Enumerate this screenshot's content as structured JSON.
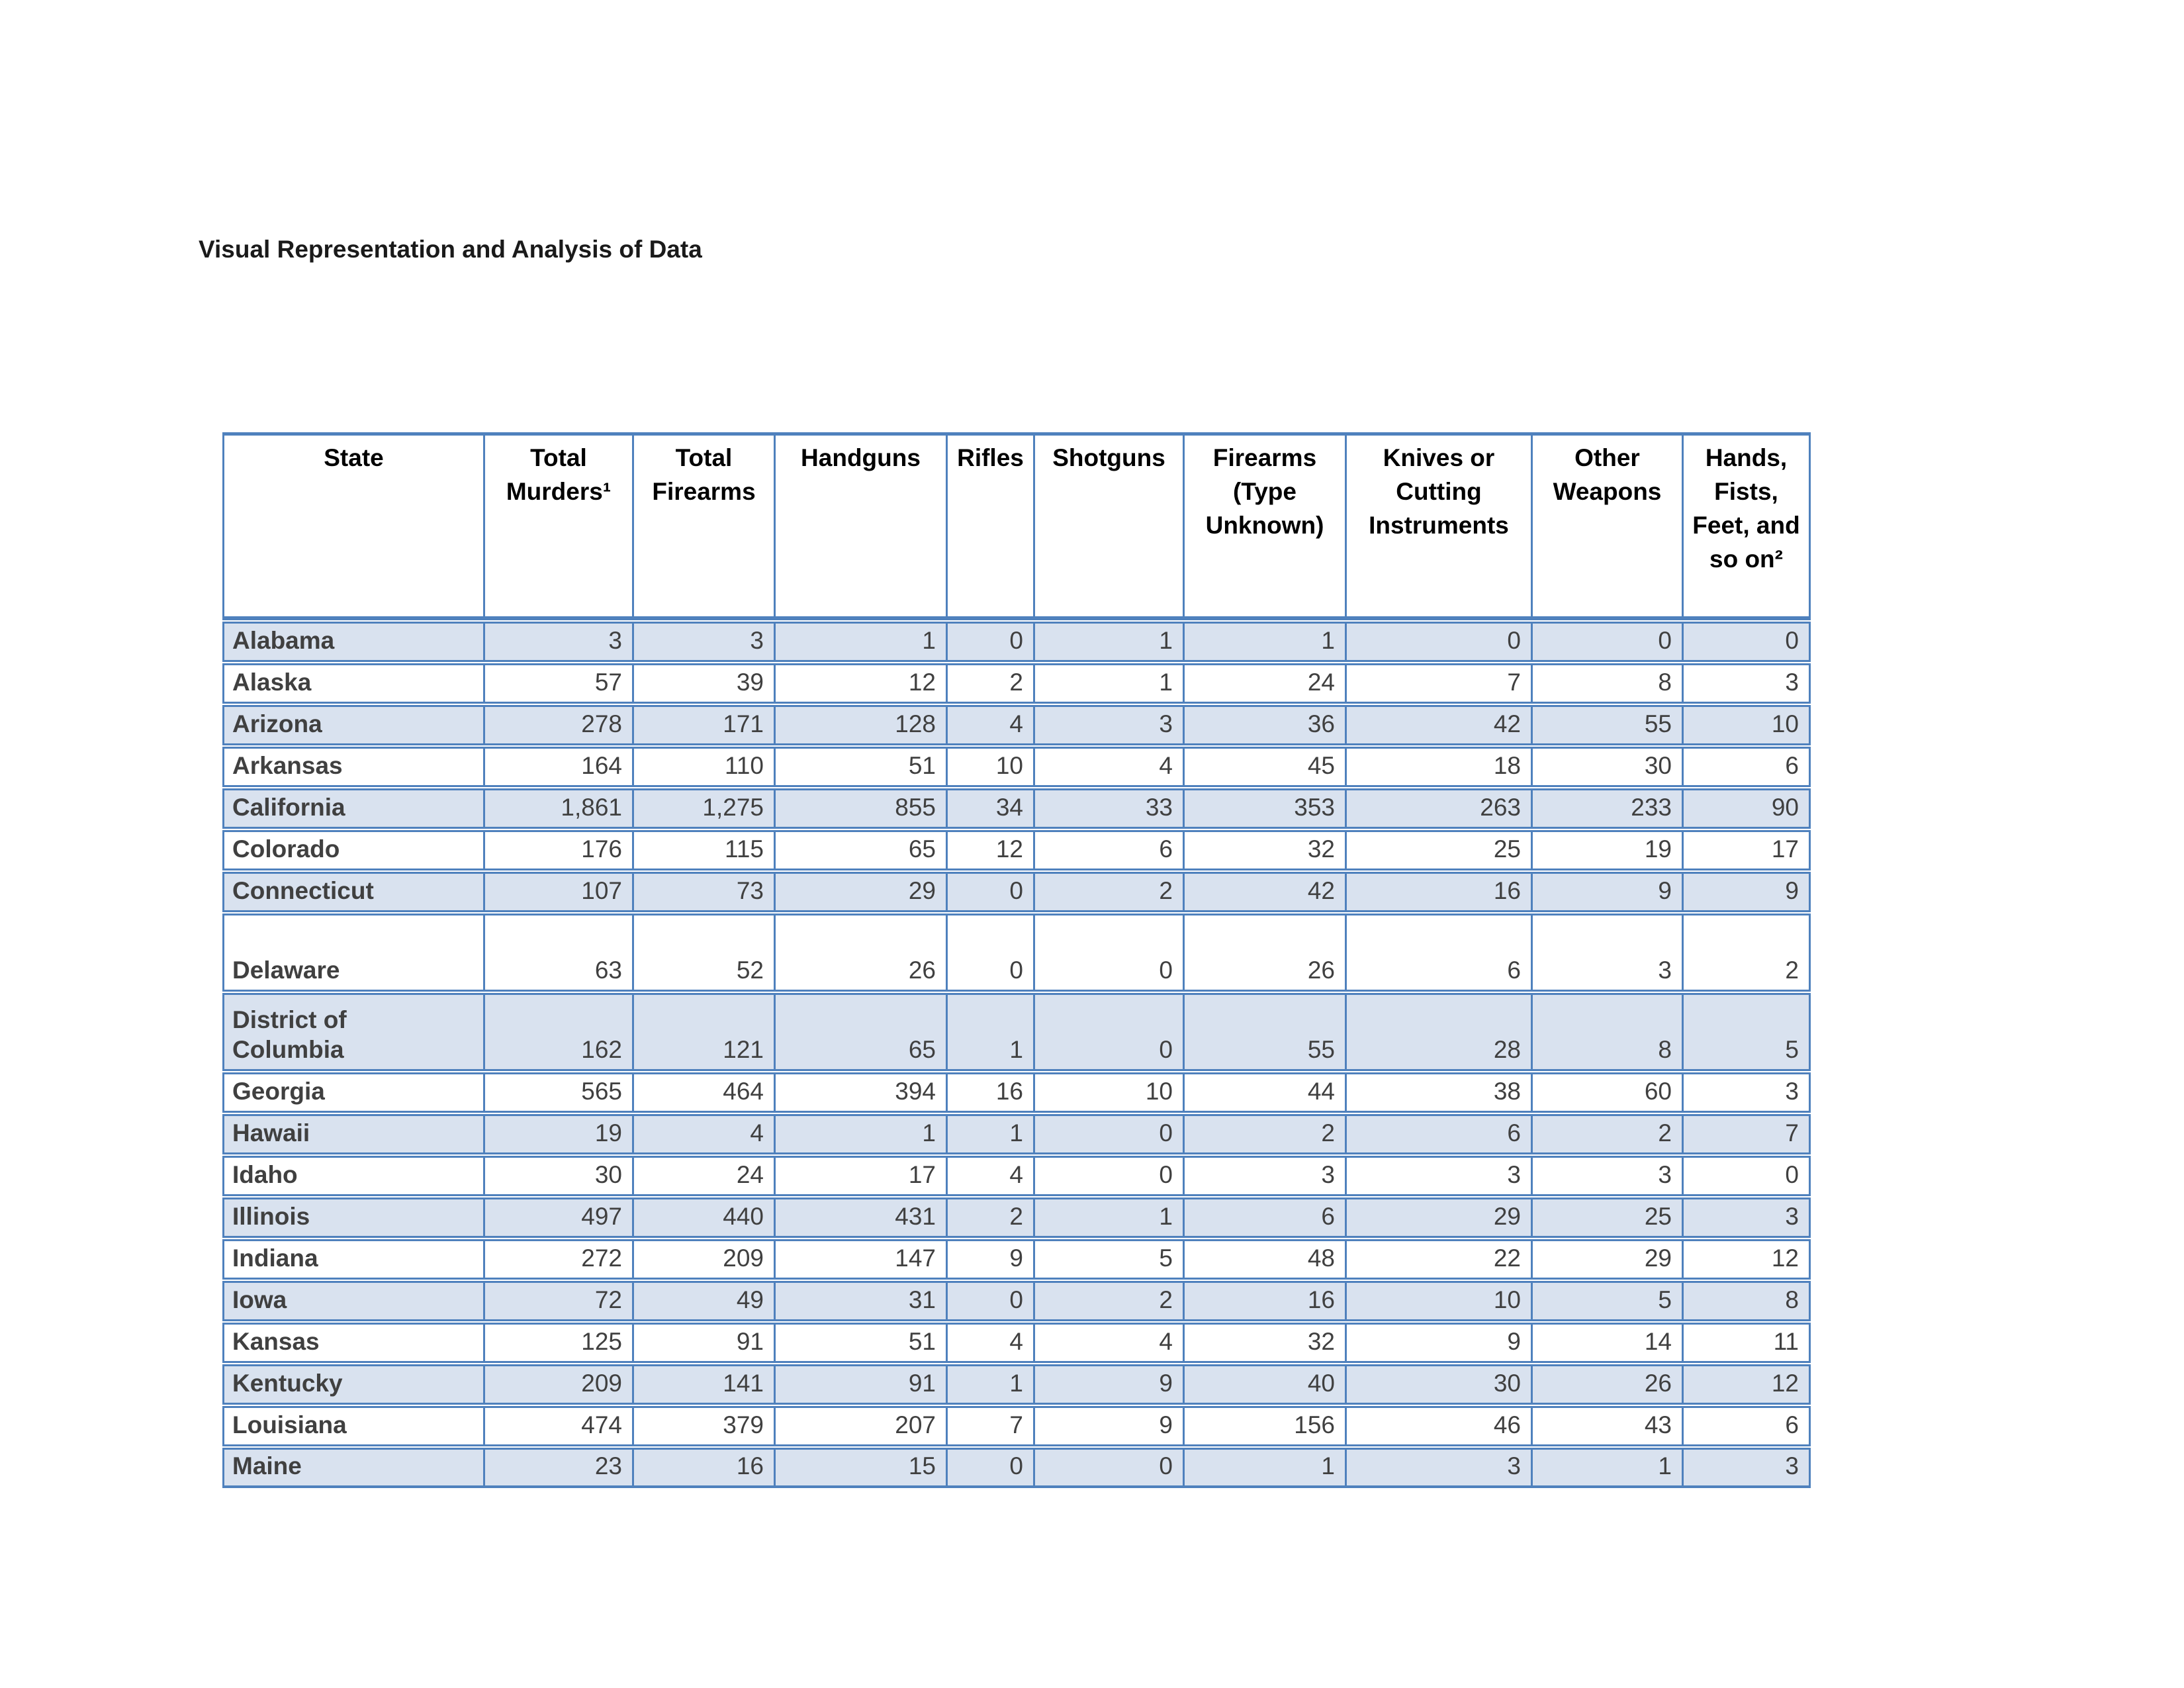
{
  "page_title": "Visual Representation and Analysis of Data",
  "colors": {
    "table_border": "#4f81bd",
    "band_fill": "#d9e2ef",
    "body_text": "#404040",
    "header_text": "#000000"
  },
  "table": {
    "columns": [
      "State",
      "Total Murders¹",
      "Total Firearms",
      "Handguns",
      "Rifles",
      "Shotguns",
      "Firearms (Type Unknown)",
      "Knives or Cutting Instruments",
      "Other Weapons",
      "Hands, Fists, Feet, and so on²"
    ],
    "rows": [
      {
        "state": "Alabama",
        "tall": false,
        "values": [
          "3",
          "3",
          "1",
          "0",
          "1",
          "1",
          "0",
          "0",
          "0"
        ]
      },
      {
        "state": "Alaska",
        "tall": false,
        "values": [
          "57",
          "39",
          "12",
          "2",
          "1",
          "24",
          "7",
          "8",
          "3"
        ]
      },
      {
        "state": "Arizona",
        "tall": false,
        "values": [
          "278",
          "171",
          "128",
          "4",
          "3",
          "36",
          "42",
          "55",
          "10"
        ]
      },
      {
        "state": "Arkansas",
        "tall": false,
        "values": [
          "164",
          "110",
          "51",
          "10",
          "4",
          "45",
          "18",
          "30",
          "6"
        ]
      },
      {
        "state": "California",
        "tall": false,
        "values": [
          "1,861",
          "1,275",
          "855",
          "34",
          "33",
          "353",
          "263",
          "233",
          "90"
        ]
      },
      {
        "state": "Colorado",
        "tall": false,
        "values": [
          "176",
          "115",
          "65",
          "12",
          "6",
          "32",
          "25",
          "19",
          "17"
        ]
      },
      {
        "state": "Connecticut",
        "tall": false,
        "values": [
          "107",
          "73",
          "29",
          "0",
          "2",
          "42",
          "16",
          "9",
          "9"
        ]
      },
      {
        "state": "Delaware",
        "tall": true,
        "values": [
          "63",
          "52",
          "26",
          "0",
          "0",
          "26",
          "6",
          "3",
          "2"
        ]
      },
      {
        "state": "District of\nColumbia",
        "tall": true,
        "values": [
          "162",
          "121",
          "65",
          "1",
          "0",
          "55",
          "28",
          "8",
          "5"
        ]
      },
      {
        "state": "Georgia",
        "tall": false,
        "values": [
          "565",
          "464",
          "394",
          "16",
          "10",
          "44",
          "38",
          "60",
          "3"
        ]
      },
      {
        "state": "Hawaii",
        "tall": false,
        "values": [
          "19",
          "4",
          "1",
          "1",
          "0",
          "2",
          "6",
          "2",
          "7"
        ]
      },
      {
        "state": "Idaho",
        "tall": false,
        "values": [
          "30",
          "24",
          "17",
          "4",
          "0",
          "3",
          "3",
          "3",
          "0"
        ]
      },
      {
        "state": "Illinois",
        "tall": false,
        "values": [
          "497",
          "440",
          "431",
          "2",
          "1",
          "6",
          "29",
          "25",
          "3"
        ]
      },
      {
        "state": "Indiana",
        "tall": false,
        "values": [
          "272",
          "209",
          "147",
          "9",
          "5",
          "48",
          "22",
          "29",
          "12"
        ]
      },
      {
        "state": "Iowa",
        "tall": false,
        "values": [
          "72",
          "49",
          "31",
          "0",
          "2",
          "16",
          "10",
          "5",
          "8"
        ]
      },
      {
        "state": "Kansas",
        "tall": false,
        "values": [
          "125",
          "91",
          "51",
          "4",
          "4",
          "32",
          "9",
          "14",
          "11"
        ]
      },
      {
        "state": "Kentucky",
        "tall": false,
        "values": [
          "209",
          "141",
          "91",
          "1",
          "9",
          "40",
          "30",
          "26",
          "12"
        ]
      },
      {
        "state": "Louisiana",
        "tall": false,
        "values": [
          "474",
          "379",
          "207",
          "7",
          "9",
          "156",
          "46",
          "43",
          "6"
        ]
      },
      {
        "state": "Maine",
        "tall": false,
        "values": [
          "23",
          "16",
          "15",
          "0",
          "0",
          "1",
          "3",
          "1",
          "3"
        ]
      }
    ]
  }
}
